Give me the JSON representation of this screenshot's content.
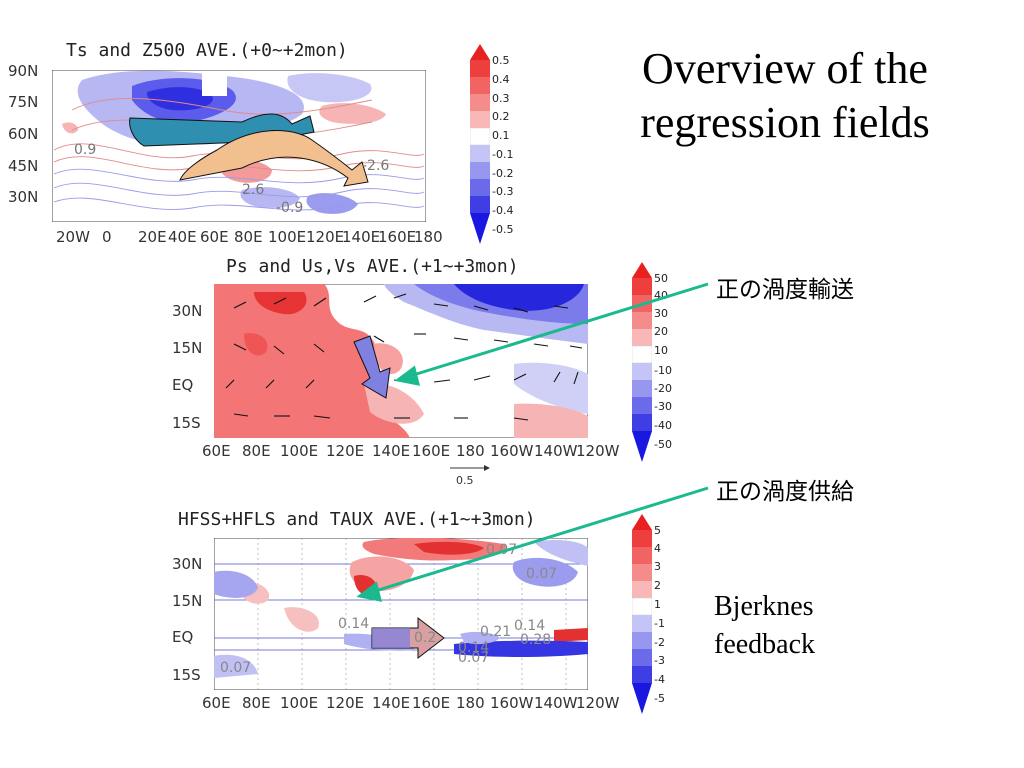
{
  "slide": {
    "title_line1": "Overview of the",
    "title_line2": "regression fields",
    "annotation_1": "正の渦度輸送",
    "annotation_2": "正の渦度供給",
    "bjerknes_line1": "Bjerknes",
    "bjerknes_line2": "feedback"
  },
  "panels": [
    {
      "title": "Ts and Z500 AVE.(+0~+2mon)",
      "y_ticks": [
        "90N",
        "75N",
        "60N",
        "45N",
        "30N"
      ],
      "x_ticks": [
        "20W",
        "0",
        "20E",
        "40E",
        "60E",
        "80E",
        "100E",
        "120E",
        "140E",
        "160E",
        "180"
      ],
      "contour_labels": [
        "0.9",
        "-2.6",
        "2.6",
        "-0.9"
      ],
      "colorbar_ticks": [
        "0.5",
        "0.4",
        "0.3",
        "0.2",
        "0.1",
        "-0.1",
        "-0.2",
        "-0.3",
        "-0.4",
        "-0.5"
      ]
    },
    {
      "title": "Ps and Us,Vs AVE.(+1~+3mon)",
      "y_ticks": [
        "30N",
        "15N",
        "EQ",
        "15S"
      ],
      "x_ticks": [
        "60E",
        "80E",
        "100E",
        "120E",
        "140E",
        "160E",
        "180",
        "160W",
        "140W",
        "120W"
      ],
      "vector_scale": "0.5",
      "colorbar_ticks": [
        "50",
        "40",
        "30",
        "20",
        "10",
        "-10",
        "-20",
        "-30",
        "-40",
        "-50"
      ]
    },
    {
      "title": "HFSS+HFLS and TAUX AVE.(+1~+3mon)",
      "y_ticks": [
        "30N",
        "15N",
        "EQ",
        "15S"
      ],
      "x_ticks": [
        "60E",
        "80E",
        "100E",
        "120E",
        "140E",
        "160E",
        "180",
        "160W",
        "140W",
        "120W"
      ],
      "contour_labels": [
        "0.07",
        "0.07",
        "0.14",
        "0.2",
        "0.21",
        "0.14",
        "0.28",
        "0.14",
        "0.07",
        "0.07"
      ],
      "colorbar_ticks": [
        "5",
        "4",
        "3",
        "2",
        "1",
        "-1",
        "-2",
        "-3",
        "-4",
        "-5"
      ]
    }
  ],
  "colors": {
    "warm": "#e8383a",
    "warm_light": "#f4a3a3",
    "cool": "#3a3ae8",
    "cool_light": "#a8a8f0",
    "arrow_teal": "#1aba8e",
    "wave_blue": "#2f8fb0",
    "wave_orange": "#f2bf8f",
    "purple_arrow": "#8080e0"
  }
}
